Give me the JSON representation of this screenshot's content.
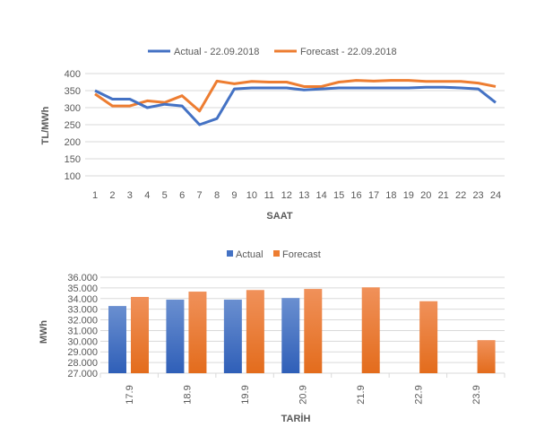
{
  "chart_data": [
    {
      "type": "line",
      "title": "",
      "xlabel": "SAAT",
      "ylabel": "TL/MWh",
      "ylim": [
        100,
        400
      ],
      "yticks": [
        100,
        150,
        200,
        250,
        300,
        350,
        400
      ],
      "grid": true,
      "legend": "top",
      "x": [
        1,
        2,
        3,
        4,
        5,
        6,
        7,
        8,
        9,
        10,
        11,
        12,
        13,
        14,
        15,
        16,
        17,
        18,
        19,
        20,
        21,
        22,
        23,
        24
      ],
      "series": [
        {
          "name": "Actual - 22.09.2018",
          "color": "#4472C4",
          "values": [
            350,
            325,
            325,
            300,
            310,
            305,
            250,
            268,
            355,
            358,
            358,
            358,
            352,
            355,
            358,
            358,
            358,
            358,
            358,
            360,
            360,
            358,
            355,
            315
          ]
        },
        {
          "name": "Forecast - 22.09.2018",
          "color": "#ED7D31",
          "values": [
            340,
            305,
            305,
            320,
            315,
            335,
            290,
            378,
            370,
            377,
            375,
            375,
            362,
            362,
            375,
            380,
            378,
            380,
            380,
            377,
            377,
            377,
            372,
            362
          ]
        }
      ]
    },
    {
      "type": "bar",
      "title": "",
      "xlabel": "TARİH",
      "ylabel": "MWh",
      "ylim": [
        27000,
        36000
      ],
      "yticks": [
        "27.000",
        "28.000",
        "29.000",
        "30.000",
        "31.000",
        "32.000",
        "33.000",
        "34.000",
        "35.000",
        "36.000"
      ],
      "grid": true,
      "legend": "top",
      "categories": [
        "17.9",
        "18.9",
        "19.9",
        "20.9",
        "21.9",
        "22.9",
        "23.9"
      ],
      "series": [
        {
          "name": "Actual",
          "color": "#4472C4",
          "values": [
            33300,
            33900,
            33900,
            34050,
            null,
            null,
            null
          ]
        },
        {
          "name": "Forecast",
          "color": "#ED7D31",
          "values": [
            34150,
            34650,
            34800,
            34900,
            35050,
            33750,
            30100
          ]
        }
      ]
    }
  ]
}
